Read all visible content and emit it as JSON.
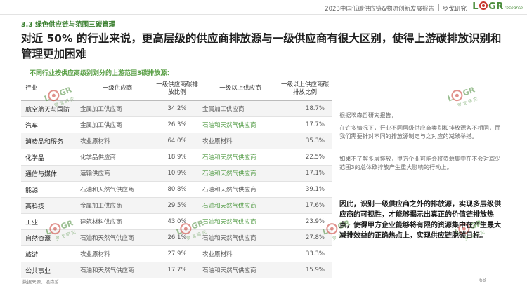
{
  "header": {
    "report_title": "2023中国低碳供应链&物流创新发展报告",
    "separator": "|",
    "brand_cn": "罗戈研究",
    "logo_text_1": "L",
    "logo_text_2": "GR",
    "logo_sub": "research"
  },
  "section_label": "3.3 绿色供应链与范围三碳管理",
  "headline": "对近 50% 的行业来说，更高层级的供应商排放源与一级供应商有很大区别，使得上游碳排放识别和管理更加困难",
  "table": {
    "caption": "不同行业按供应商级别划分的上游范围3碳排放源：",
    "headers": [
      "行业",
      "一级供应商",
      "一级供应商碳排放比例",
      "一级以上供应商",
      "一级以上供应商碳排放比例"
    ],
    "rows": [
      {
        "industry": "航空航天与国防",
        "tier1": "金属加工供应商",
        "tier1_share": "34.2%",
        "upper": "金属加工供应商",
        "upper_share": "18.7%",
        "upper_green": false
      },
      {
        "industry": "汽车",
        "tier1": "金属加工供应商",
        "tier1_share": "26.3%",
        "upper": "石油和天然气供应商",
        "upper_share": "17.7%",
        "upper_green": true
      },
      {
        "industry": "消费品和服务",
        "tier1": "农业原材料",
        "tier1_share": "64.0%",
        "upper": "农业原材料",
        "upper_share": "35.3%",
        "upper_green": false
      },
      {
        "industry": "化学品",
        "tier1": "化学品供应商",
        "tier1_share": "18.9%",
        "upper": "石油和天然气供应商",
        "upper_share": "22.5%",
        "upper_green": true
      },
      {
        "industry": "通信与媒体",
        "tier1": "运输供应商",
        "tier1_share": "10.9%",
        "upper": "石油和天然气供应商",
        "upper_share": "17.1%",
        "upper_green": true
      },
      {
        "industry": "能源",
        "tier1": "石油和天然气供应商",
        "tier1_share": "80.8%",
        "upper": "石油和天然气供应商",
        "upper_share": "39.1%",
        "upper_green": false
      },
      {
        "industry": "高科技",
        "tier1": "金属加工供应商",
        "tier1_share": "29.5%",
        "upper": "石油和天然气供应商",
        "upper_share": "17.6%",
        "upper_green": true
      },
      {
        "industry": "工业",
        "tier1": "建筑材料供应商",
        "tier1_share": "43.0%",
        "upper": "石油和天然气供应商",
        "upper_share": "23.9%",
        "upper_green": true
      },
      {
        "industry": "自然资源",
        "tier1": "石油和天然气供应商",
        "tier1_share": "26.1%",
        "upper": "石油和天然气供应商",
        "upper_share": "27.8%",
        "upper_green": false
      },
      {
        "industry": "旅游",
        "tier1": "农业原材料",
        "tier1_share": "27.9%",
        "upper": "农业原材料",
        "upper_share": "33.3%",
        "upper_green": false
      },
      {
        "industry": "公共事业",
        "tier1": "石油和天然气供应商",
        "tier1_share": "17.7%",
        "upper": "石油和天然气供应商",
        "upper_share": "15.9%",
        "upper_green": false
      }
    ]
  },
  "side_text": {
    "p1": "根据埃森哲研究报告，",
    "p2": "在许多情况下，行业不同层级供应商类别和排放源各不相同，而我们需要针对不同的排放源制定与之对应的减碳举措。",
    "p3": "如果不了解多层排放，甲方企业可能会将资源集中在不会对减少范围3的总体碳排放产生重大影响的行动上。"
  },
  "conclusion": "因此，识别一级供应商之外的排放源，实现多层级供应商的可视性，才能够揭示出真正的价值链排放热点，使得甲方企业能够将有限的资源集中在产生最大减排效益的正确热点上，实现供应链脱碳目标。",
  "source": "数据来源：埃森哲",
  "page_number": "68",
  "colors": {
    "accent_green": "#4f9a42",
    "logo_red": "#c8392f"
  }
}
